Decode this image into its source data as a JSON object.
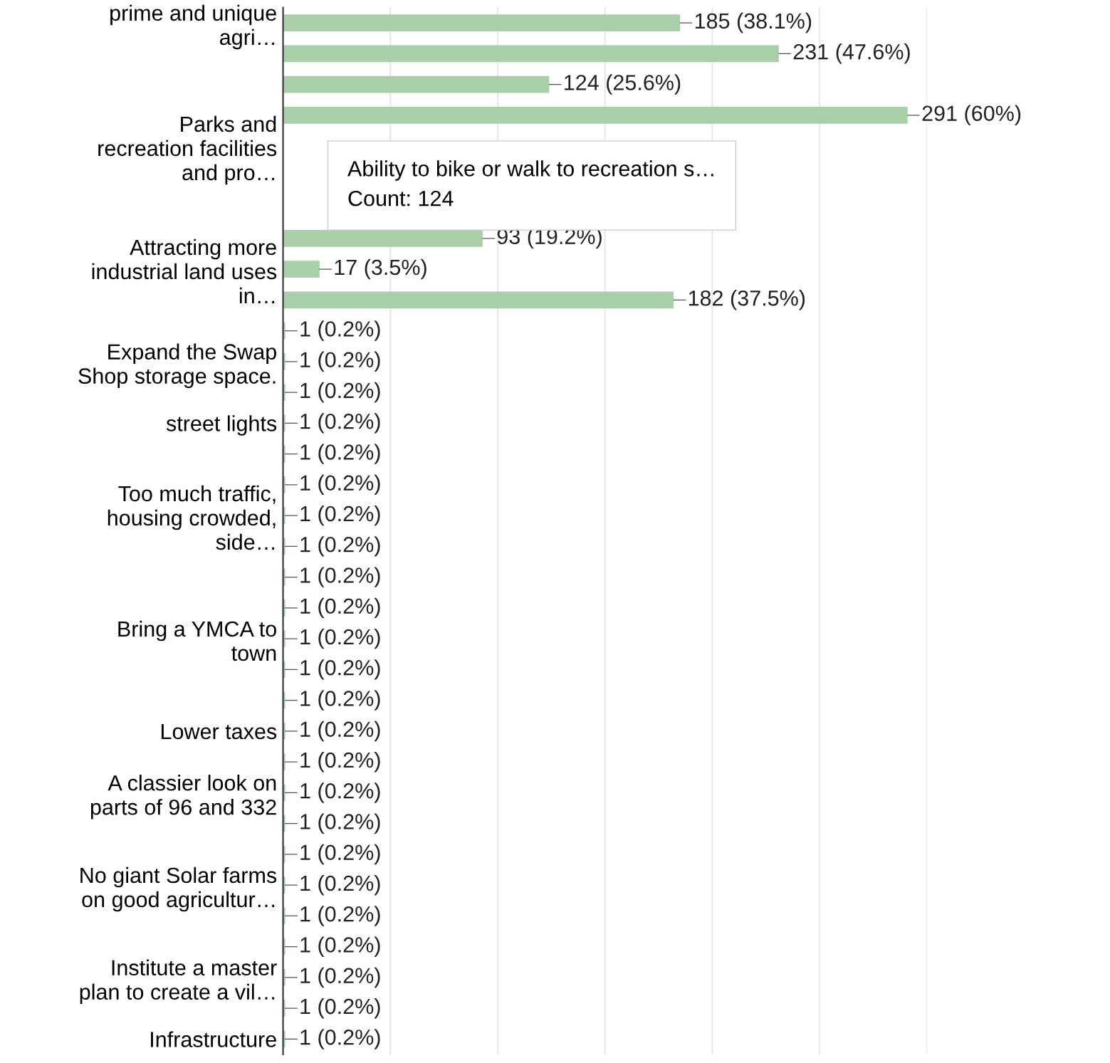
{
  "chart_data": {
    "type": "bar",
    "orientation": "horizontal",
    "categories": [
      "prime and unique\nagri…",
      null,
      null,
      null,
      "Parks and\nrecreation facilities\nand pro…",
      null,
      null,
      null,
      "Attracting more\nindustrial land uses\nin…",
      null,
      null,
      "Expand the Swap\nShop storage space.",
      null,
      "street lights",
      null,
      null,
      "Too much traffic,\nhousing crowded,\nside…",
      null,
      null,
      null,
      "Bring a YMCA to\ntown",
      null,
      null,
      "Lower taxes",
      null,
      "A classier look on\nparts of 96 and 332",
      null,
      null,
      "No giant Solar farms\non good agricultur…",
      null,
      null,
      "Institute a master\nplan to create a vil…",
      null,
      "Infrastructure"
    ],
    "values": [
      185,
      231,
      124,
      291,
      null,
      null,
      null,
      93,
      17,
      182,
      1,
      1,
      1,
      1,
      1,
      1,
      1,
      1,
      1,
      1,
      1,
      1,
      1,
      1,
      1,
      1,
      1,
      1,
      1,
      1,
      1,
      1,
      1,
      1
    ],
    "value_labels": [
      "185 (38.1%)",
      "231 (47.6%)",
      "124 (25.6%)",
      "291 (60%)",
      null,
      null,
      null,
      "93 (19.2%)",
      "17 (3.5%)",
      "182 (37.5%)",
      "1 (0.2%)",
      "1 (0.2%)",
      "1 (0.2%)",
      "1 (0.2%)",
      "1 (0.2%)",
      "1 (0.2%)",
      "1 (0.2%)",
      "1 (0.2%)",
      "1 (0.2%)",
      "1 (0.2%)",
      "1 (0.2%)",
      "1 (0.2%)",
      "1 (0.2%)",
      "1 (0.2%)",
      "1 (0.2%)",
      "1 (0.2%)",
      "1 (0.2%)",
      "1 (0.2%)",
      "1 (0.2%)",
      "1 (0.2%)",
      "1 (0.2%)",
      "1 (0.2%)",
      "1 (0.2%)",
      "1 (0.2%)"
    ],
    "color": "#a8cfa8",
    "xlim": [
      0,
      300
    ],
    "xticks": [
      {
        "value": 0,
        "label": null
      },
      {
        "value": 50,
        "label": null
      },
      {
        "value": 100,
        "label": null
      },
      {
        "value": 150,
        "label": null
      },
      {
        "value": 200,
        "label": null
      },
      {
        "value": 250,
        "label": null
      },
      {
        "value": 300,
        "label": null
      }
    ],
    "grid": "x",
    "tick_labels": "y",
    "annotations": [
      "Ability to bike or walk to recreation s…\nCount: 124"
    ]
  }
}
